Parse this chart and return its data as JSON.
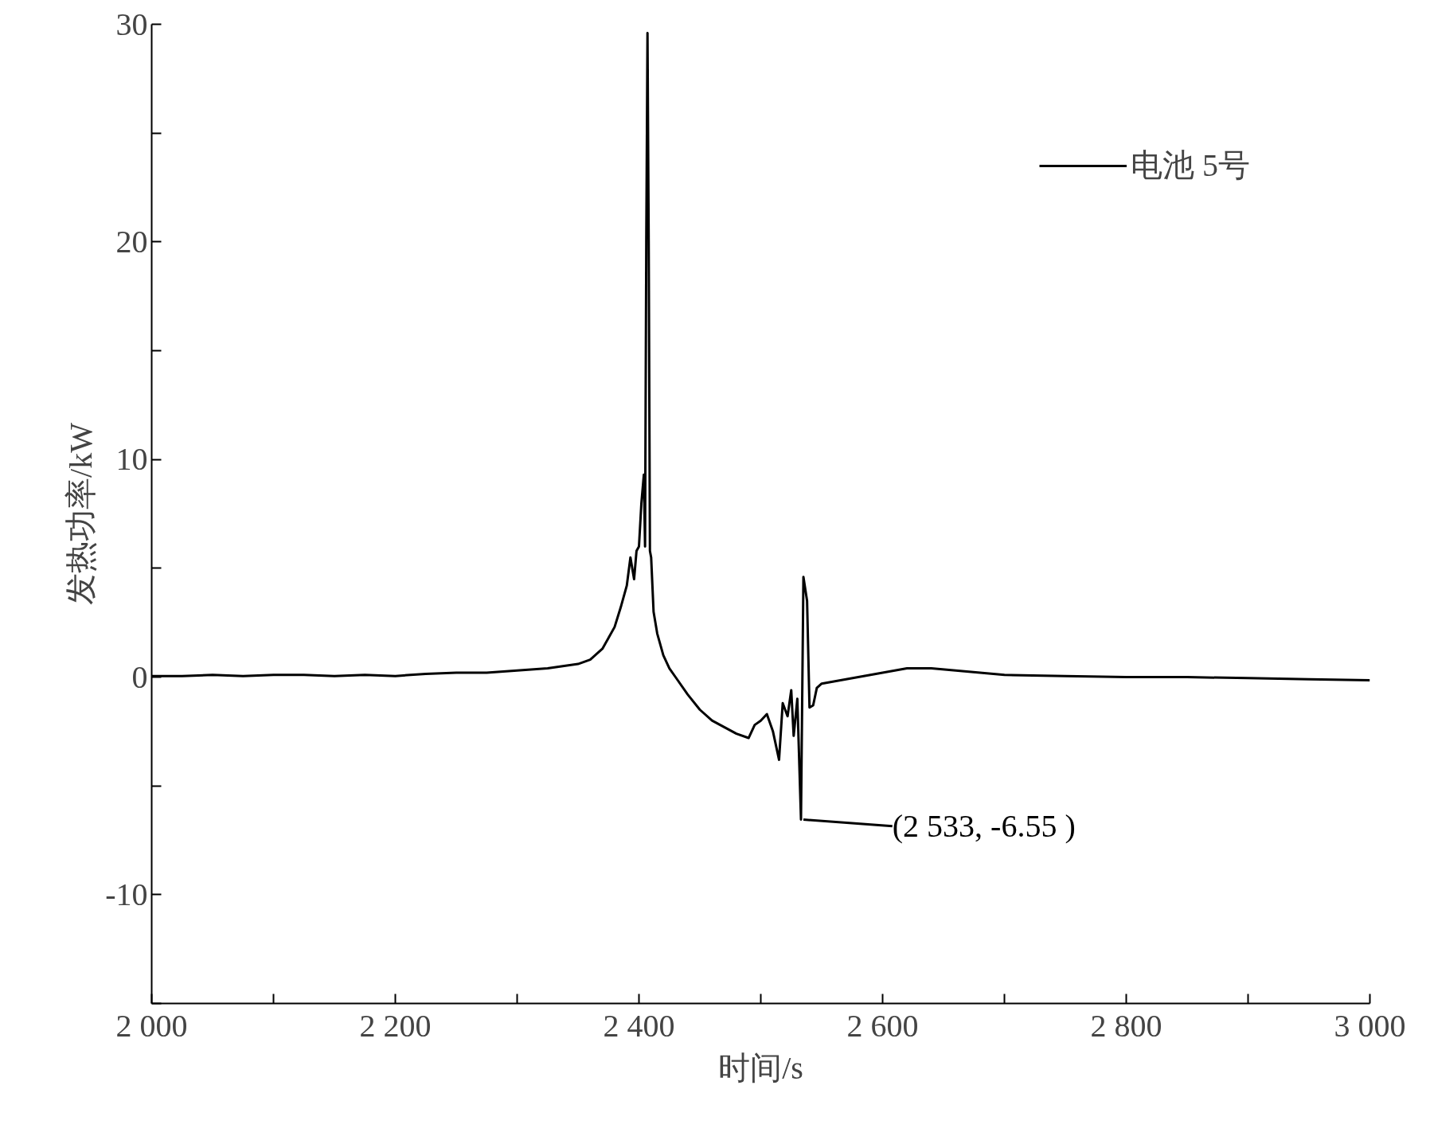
{
  "chart_data": {
    "type": "line",
    "xlabel": "时间/s",
    "ylabel": "发热功率/kW",
    "xlim": [
      2000,
      3000
    ],
    "ylim": [
      -15,
      30
    ],
    "xticks": [
      {
        "value": 2000,
        "label": "2 000"
      },
      {
        "value": 2100,
        "label": null
      },
      {
        "value": 2200,
        "label": "2 200"
      },
      {
        "value": 2300,
        "label": null
      },
      {
        "value": 2400,
        "label": "2 400"
      },
      {
        "value": 2500,
        "label": null
      },
      {
        "value": 2600,
        "label": "2 600"
      },
      {
        "value": 2700,
        "label": null
      },
      {
        "value": 2800,
        "label": "2 800"
      },
      {
        "value": 2900,
        "label": null
      },
      {
        "value": 3000,
        "label": "3 000"
      }
    ],
    "yticks": [
      {
        "value": -15,
        "label": null
      },
      -10,
      {
        "value": -5,
        "label": null
      },
      0,
      {
        "value": 5,
        "label": null
      },
      10,
      {
        "value": 15,
        "label": null
      },
      20,
      {
        "value": 25,
        "label": null
      },
      30
    ],
    "grid": false,
    "legend": "top right",
    "line_style": "solid",
    "annotations": [
      {
        "text": "(2 533, -6.55 )",
        "x": 2533,
        "y": -6.55
      }
    ],
    "series": [
      {
        "name": "电池 5号",
        "color": "#000000",
        "x": [
          2000,
          2025,
          2050,
          2075,
          2100,
          2125,
          2150,
          2175,
          2200,
          2225,
          2250,
          2275,
          2300,
          2325,
          2350,
          2360,
          2370,
          2380,
          2385,
          2390,
          2393,
          2396,
          2398,
          2400,
          2402,
          2404,
          2405,
          2406,
          2407,
          2408,
          2409,
          2410,
          2412,
          2415,
          2420,
          2425,
          2430,
          2440,
          2450,
          2460,
          2470,
          2480,
          2490,
          2495,
          2500,
          2505,
          2510,
          2515,
          2518,
          2522,
          2525,
          2527,
          2530,
          2533,
          2535,
          2538,
          2540,
          2543,
          2546,
          2550,
          2560,
          2580,
          2600,
          2620,
          2640,
          2660,
          2700,
          2750,
          2800,
          2850,
          2900,
          2950,
          3000
        ],
        "values": [
          0.05,
          0.05,
          0.1,
          0.05,
          0.1,
          0.1,
          0.05,
          0.1,
          0.05,
          0.15,
          0.2,
          0.2,
          0.3,
          0.4,
          0.6,
          0.8,
          1.3,
          2.3,
          3.2,
          4.2,
          5.5,
          4.5,
          5.8,
          6.0,
          8.0,
          9.3,
          6.0,
          20,
          29.6,
          20,
          5.8,
          5.5,
          3.0,
          2.0,
          1.0,
          0.4,
          0,
          -0.8,
          -1.5,
          -2.0,
          -2.3,
          -2.6,
          -2.8,
          -2.2,
          -2.0,
          -1.7,
          -2.5,
          -3.8,
          -1.2,
          -1.8,
          -0.6,
          -2.7,
          -1.0,
          -6.55,
          4.6,
          3.5,
          -1.4,
          -1.3,
          -0.5,
          -0.3,
          -0.2,
          0,
          0.2,
          0.4,
          0.4,
          0.3,
          0.1,
          0.05,
          0,
          0,
          -0.05,
          -0.1,
          -0.15
        ]
      }
    ]
  }
}
